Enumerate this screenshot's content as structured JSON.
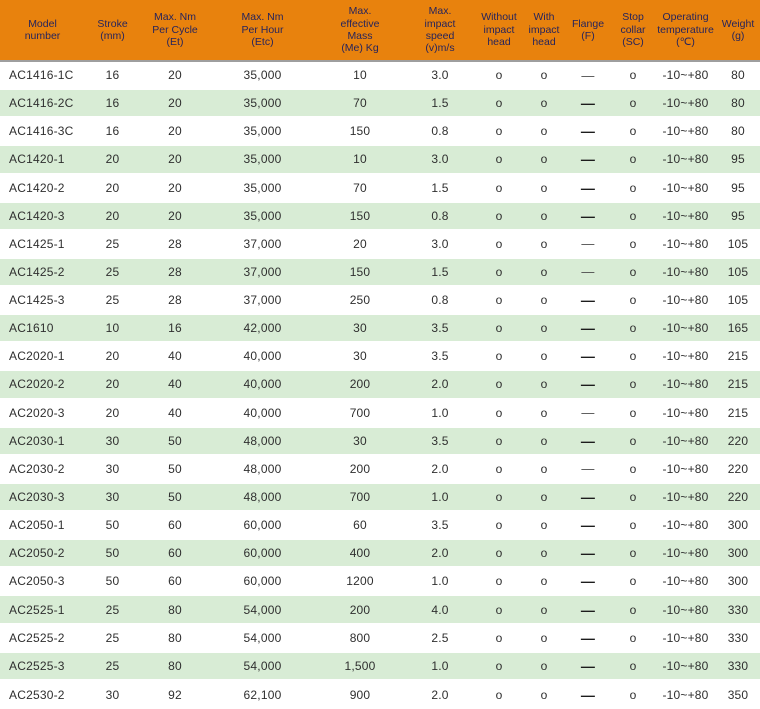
{
  "colors": {
    "header_bg": "#E8820D",
    "header_text": "#26245C",
    "row_alt_green": "#D8ECD5",
    "row_white": "#FFFFFF",
    "cell_text": "#2F2F2F",
    "header_divider": "#9E9E9E"
  },
  "table": {
    "columns": [
      {
        "key": "model",
        "label": "Model\nnumber"
      },
      {
        "key": "stroke",
        "label": "Stroke\n(mm)"
      },
      {
        "key": "et",
        "label": "Max. Nm\nPer Cycle\n(Et)"
      },
      {
        "key": "etc",
        "label": "Max. Nm\nPer Hour\n(Etc)"
      },
      {
        "key": "me",
        "label": "Max.\neffective\nMass\n(Me) Kg"
      },
      {
        "key": "speed",
        "label": "Max.\nimpact\nspeed\n(v)m/s"
      },
      {
        "key": "without",
        "label": "Without\nimpact\nhead"
      },
      {
        "key": "with",
        "label": "With\nimpact\nhead"
      },
      {
        "key": "flange",
        "label": "Flange\n(F)"
      },
      {
        "key": "sc",
        "label": "Stop\ncollar\n(SC)"
      },
      {
        "key": "temp",
        "label": "Operating\ntemperature\n(℃)"
      },
      {
        "key": "weight",
        "label": "Weight\n(g)"
      }
    ],
    "rows": [
      {
        "cells": [
          "AC1416-1C",
          "16",
          "20",
          "35,000",
          "10",
          "3.0",
          "o",
          "o",
          "—",
          "o",
          "-10~+80",
          "80"
        ],
        "flange_bold": false
      },
      {
        "cells": [
          "AC1416-2C",
          "16",
          "20",
          "35,000",
          "70",
          "1.5",
          "o",
          "o",
          "—",
          "o",
          "-10~+80",
          "80"
        ],
        "flange_bold": true
      },
      {
        "cells": [
          "AC1416-3C",
          "16",
          "20",
          "35,000",
          "150",
          "0.8",
          "o",
          "o",
          "—",
          "o",
          "-10~+80",
          "80"
        ],
        "flange_bold": true
      },
      {
        "cells": [
          "AC1420-1",
          "20",
          "20",
          "35,000",
          "10",
          "3.0",
          "o",
          "o",
          "—",
          "o",
          "-10~+80",
          "95"
        ],
        "flange_bold": true
      },
      {
        "cells": [
          "AC1420-2",
          "20",
          "20",
          "35,000",
          "70",
          "1.5",
          "o",
          "o",
          "—",
          "o",
          "-10~+80",
          "95"
        ],
        "flange_bold": true
      },
      {
        "cells": [
          "AC1420-3",
          "20",
          "20",
          "35,000",
          "150",
          "0.8",
          "o",
          "o",
          "—",
          "o",
          "-10~+80",
          "95"
        ],
        "flange_bold": true
      },
      {
        "cells": [
          "AC1425-1",
          "25",
          "28",
          "37,000",
          "20",
          "3.0",
          "o",
          "o",
          "—",
          "o",
          "-10~+80",
          "105"
        ],
        "flange_bold": false
      },
      {
        "cells": [
          "AC1425-2",
          "25",
          "28",
          "37,000",
          "150",
          "1.5",
          "o",
          "o",
          "—",
          "o",
          "-10~+80",
          "105"
        ],
        "flange_bold": false
      },
      {
        "cells": [
          "AC1425-3",
          "25",
          "28",
          "37,000",
          "250",
          "0.8",
          "o",
          "o",
          "—",
          "o",
          "-10~+80",
          "105"
        ],
        "flange_bold": true
      },
      {
        "cells": [
          "AC1610",
          "10",
          "16",
          "42,000",
          "30",
          "3.5",
          "o",
          "o",
          "—",
          "o",
          "-10~+80",
          "165"
        ],
        "flange_bold": true
      },
      {
        "cells": [
          "AC2020-1",
          "20",
          "40",
          "40,000",
          "30",
          "3.5",
          "o",
          "o",
          "—",
          "o",
          "-10~+80",
          "215"
        ],
        "flange_bold": true
      },
      {
        "cells": [
          "AC2020-2",
          "20",
          "40",
          "40,000",
          "200",
          "2.0",
          "o",
          "o",
          "—",
          "o",
          "-10~+80",
          "215"
        ],
        "flange_bold": true
      },
      {
        "cells": [
          "AC2020-3",
          "20",
          "40",
          "40,000",
          "700",
          "1.0",
          "o",
          "o",
          "—",
          "o",
          "-10~+80",
          "215"
        ],
        "flange_bold": false
      },
      {
        "cells": [
          "AC2030-1",
          "30",
          "50",
          "48,000",
          "30",
          "3.5",
          "o",
          "o",
          "—",
          "o",
          "-10~+80",
          "220"
        ],
        "flange_bold": true
      },
      {
        "cells": [
          "AC2030-2",
          "30",
          "50",
          "48,000",
          "200",
          "2.0",
          "o",
          "o",
          "—",
          "o",
          "-10~+80",
          "220"
        ],
        "flange_bold": false
      },
      {
        "cells": [
          "AC2030-3",
          "30",
          "50",
          "48,000",
          "700",
          "1.0",
          "o",
          "o",
          "—",
          "o",
          "-10~+80",
          "220"
        ],
        "flange_bold": true
      },
      {
        "cells": [
          "AC2050-1",
          "50",
          "60",
          "60,000",
          "60",
          "3.5",
          "o",
          "o",
          "—",
          "o",
          "-10~+80",
          "300"
        ],
        "flange_bold": true
      },
      {
        "cells": [
          "AC2050-2",
          "50",
          "60",
          "60,000",
          "400",
          "2.0",
          "o",
          "o",
          "—",
          "o",
          "-10~+80",
          "300"
        ],
        "flange_bold": true
      },
      {
        "cells": [
          "AC2050-3",
          "50",
          "60",
          "60,000",
          "1200",
          "1.0",
          "o",
          "o",
          "—",
          "o",
          "-10~+80",
          "300"
        ],
        "flange_bold": true
      },
      {
        "cells": [
          "AC2525-1",
          "25",
          "80",
          "54,000",
          "200",
          "4.0",
          "o",
          "o",
          "—",
          "o",
          "-10~+80",
          "330"
        ],
        "flange_bold": true
      },
      {
        "cells": [
          "AC2525-2",
          "25",
          "80",
          "54,000",
          "800",
          "2.5",
          "o",
          "o",
          "—",
          "o",
          "-10~+80",
          "330"
        ],
        "flange_bold": true
      },
      {
        "cells": [
          "AC2525-3",
          "25",
          "80",
          "54,000",
          "1,500",
          "1.0",
          "o",
          "o",
          "—",
          "o",
          "-10~+80",
          "330"
        ],
        "flange_bold": true
      },
      {
        "cells": [
          "AC2530-2",
          "30",
          "92",
          "62,100",
          "900",
          "2.0",
          "o",
          "o",
          "—",
          "o",
          "-10~+80",
          "350"
        ],
        "flange_bold": true
      }
    ]
  }
}
